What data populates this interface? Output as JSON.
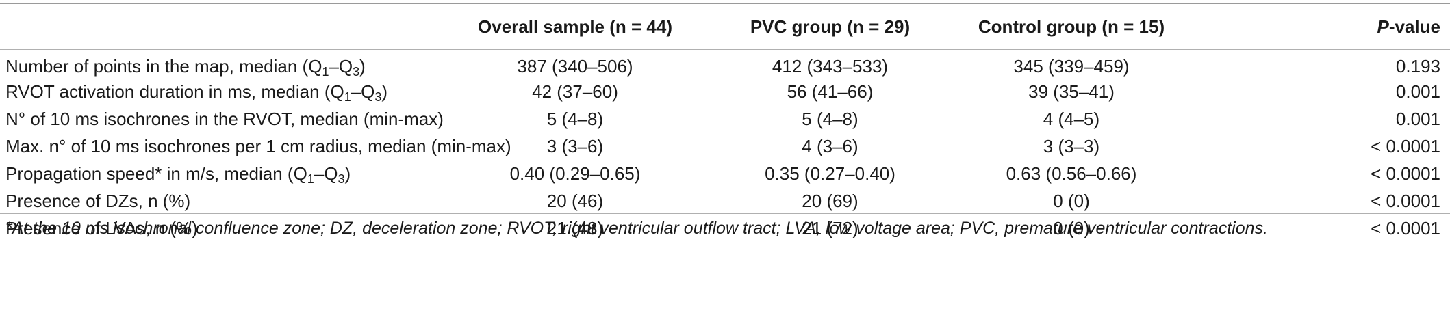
{
  "headers": {
    "overall": "Overall sample (n = 44)",
    "pvc": "PVC group (n = 29)",
    "control": "Control group (n = 15)",
    "p_italic": "P",
    "p_rest": "-value"
  },
  "rows": [
    {
      "label_pre": "Number of points in the map, median (Q",
      "sub1": "1",
      "dash": "–Q",
      "sub2": "3",
      "label_post": ")",
      "overall": "387 (340–506)",
      "pvc": "412 (343–533)",
      "control": "345 (339–459)",
      "p": "0.193"
    },
    {
      "label_pre": "RVOT activation duration in ms, median (Q",
      "sub1": "1",
      "dash": "–Q",
      "sub2": "3",
      "label_post": ")",
      "overall": "42 (37–60)",
      "pvc": "56 (41–66)",
      "control": "39 (35–41)",
      "p": "0.001"
    },
    {
      "label": "N° of 10 ms isochrones in the RVOT, median (min-max)",
      "overall": "5 (4–8)",
      "pvc": "5 (4–8)",
      "control": "4 (4–5)",
      "p": "0.001"
    },
    {
      "label": "Max. n° of 10 ms isochrones per 1 cm radius, median (min-max)",
      "overall": "3 (3–6)",
      "pvc": "4 (3–6)",
      "control": "3 (3–3)",
      "p": "< 0.0001"
    },
    {
      "label_pre": "Propagation speed* in m/s, median (Q",
      "sub1": "1",
      "dash": "–Q",
      "sub2": "3",
      "label_post": ")",
      "overall": "0.40 (0.29–0.65)",
      "pvc": "0.35 (0.27–0.40)",
      "control": "0.63 (0.56–0.66)",
      "p": "< 0.0001"
    },
    {
      "label": "Presence of DZs, n (%)",
      "overall": "20 (46)",
      "pvc": "20 (69)",
      "control": "0 (0)",
      "p": "< 0.0001"
    },
    {
      "label": "Presence of LVAs, n (%)",
      "overall": "21 (48)",
      "pvc": "21 (72)",
      "control": "0 (0)",
      "p": "< 0.0001"
    }
  ],
  "footnote": "*At the 10 ms isochronal confluence zone; DZ, deceleration zone; RVOT, right ventricular outflow tract; LVA, low voltage area; PVC, premature ventricular contractions."
}
